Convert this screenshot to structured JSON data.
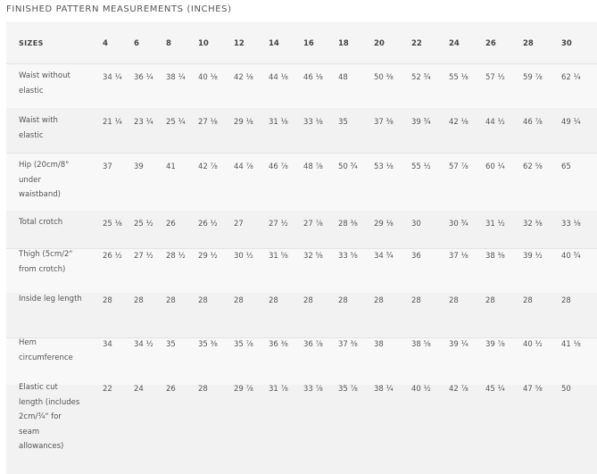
{
  "title": "FINISHED PATTERN MEASUREMENTS (INCHES)",
  "header_label": "SIZES",
  "sizes": [
    "4",
    "6",
    "8",
    "10",
    "12",
    "14",
    "16",
    "18",
    "20",
    "22",
    "24",
    "26",
    "28",
    "30"
  ],
  "rows": [
    {
      "label": "Waist without elastic",
      "values": [
        "34 ¼",
        "36 ¼",
        "38 ¼",
        "40 ⅛",
        "42 ⅛",
        "44 ⅛",
        "46 ⅛",
        "48",
        "50 ⅜",
        "52 ¾",
        "55 ⅛",
        "57 ½",
        "59 ⅞",
        "62 ¼"
      ]
    },
    {
      "label": "Waist with elastic",
      "values": [
        "21 ¼",
        "23 ¼",
        "25 ¼",
        "27 ⅛",
        "29 ⅛",
        "31 ⅛",
        "33 ⅛",
        "35",
        "37 ⅜",
        "39 ¾",
        "42 ⅛",
        "44 ½",
        "46 ⅞",
        "49 ¼"
      ]
    },
    {
      "label": "Hip (20cm/8\" under waistband)",
      "values": [
        "37",
        "39",
        "41",
        "42 ⅞",
        "44 ⅞",
        "46 ⅞",
        "48 ⅞",
        "50 ¾",
        "53 ⅛",
        "55 ½",
        "57 ⅞",
        "60 ¼",
        "62 ⅝",
        "65"
      ]
    },
    {
      "label": "Total crotch",
      "values": [
        "25 ⅛",
        "25 ½",
        "26",
        "26 ½",
        "27",
        "27 ½",
        "27 ⅞",
        "28 ⅜",
        "29 ⅛",
        "30",
        "30 ¾",
        "31 ½",
        "32 ⅜",
        "33 ⅛"
      ]
    },
    {
      "label": "Thigh (5cm/2\" from crotch)",
      "values": [
        "26 ½",
        "27 ½",
        "28 ½",
        "29 ½",
        "30 ½",
        "31 ⅝",
        "32 ⅝",
        "33 ⅝",
        "34 ¾",
        "36",
        "37 ⅛",
        "38 ⅜",
        "39 ½",
        "40 ¾"
      ]
    },
    {
      "label": "Inside leg length",
      "values": [
        "28",
        "28",
        "28",
        "28",
        "28",
        "28",
        "28",
        "28",
        "28",
        "28",
        "28",
        "28",
        "28",
        "28"
      ]
    },
    {
      "label": "Hem circumference",
      "values": [
        "34",
        "34 ½",
        "35",
        "35 ⅜",
        "35 ⅞",
        "36 ⅜",
        "36 ⅞",
        "37 ⅜",
        "38",
        "38 ⅝",
        "39 ¼",
        "39 ⅞",
        "40 ½",
        "41 ⅛"
      ]
    },
    {
      "label": "Elastic cut length (includes 2cm/¾\" for seam allowances)",
      "values": [
        "22",
        "24",
        "26",
        "28",
        "29 ⅞",
        "31 ⅞",
        "33 ⅞",
        "35 ⅞",
        "38 ¼",
        "40 ½",
        "42 ⅞",
        "45 ¼",
        "47 ⅝",
        "50"
      ]
    }
  ]
}
